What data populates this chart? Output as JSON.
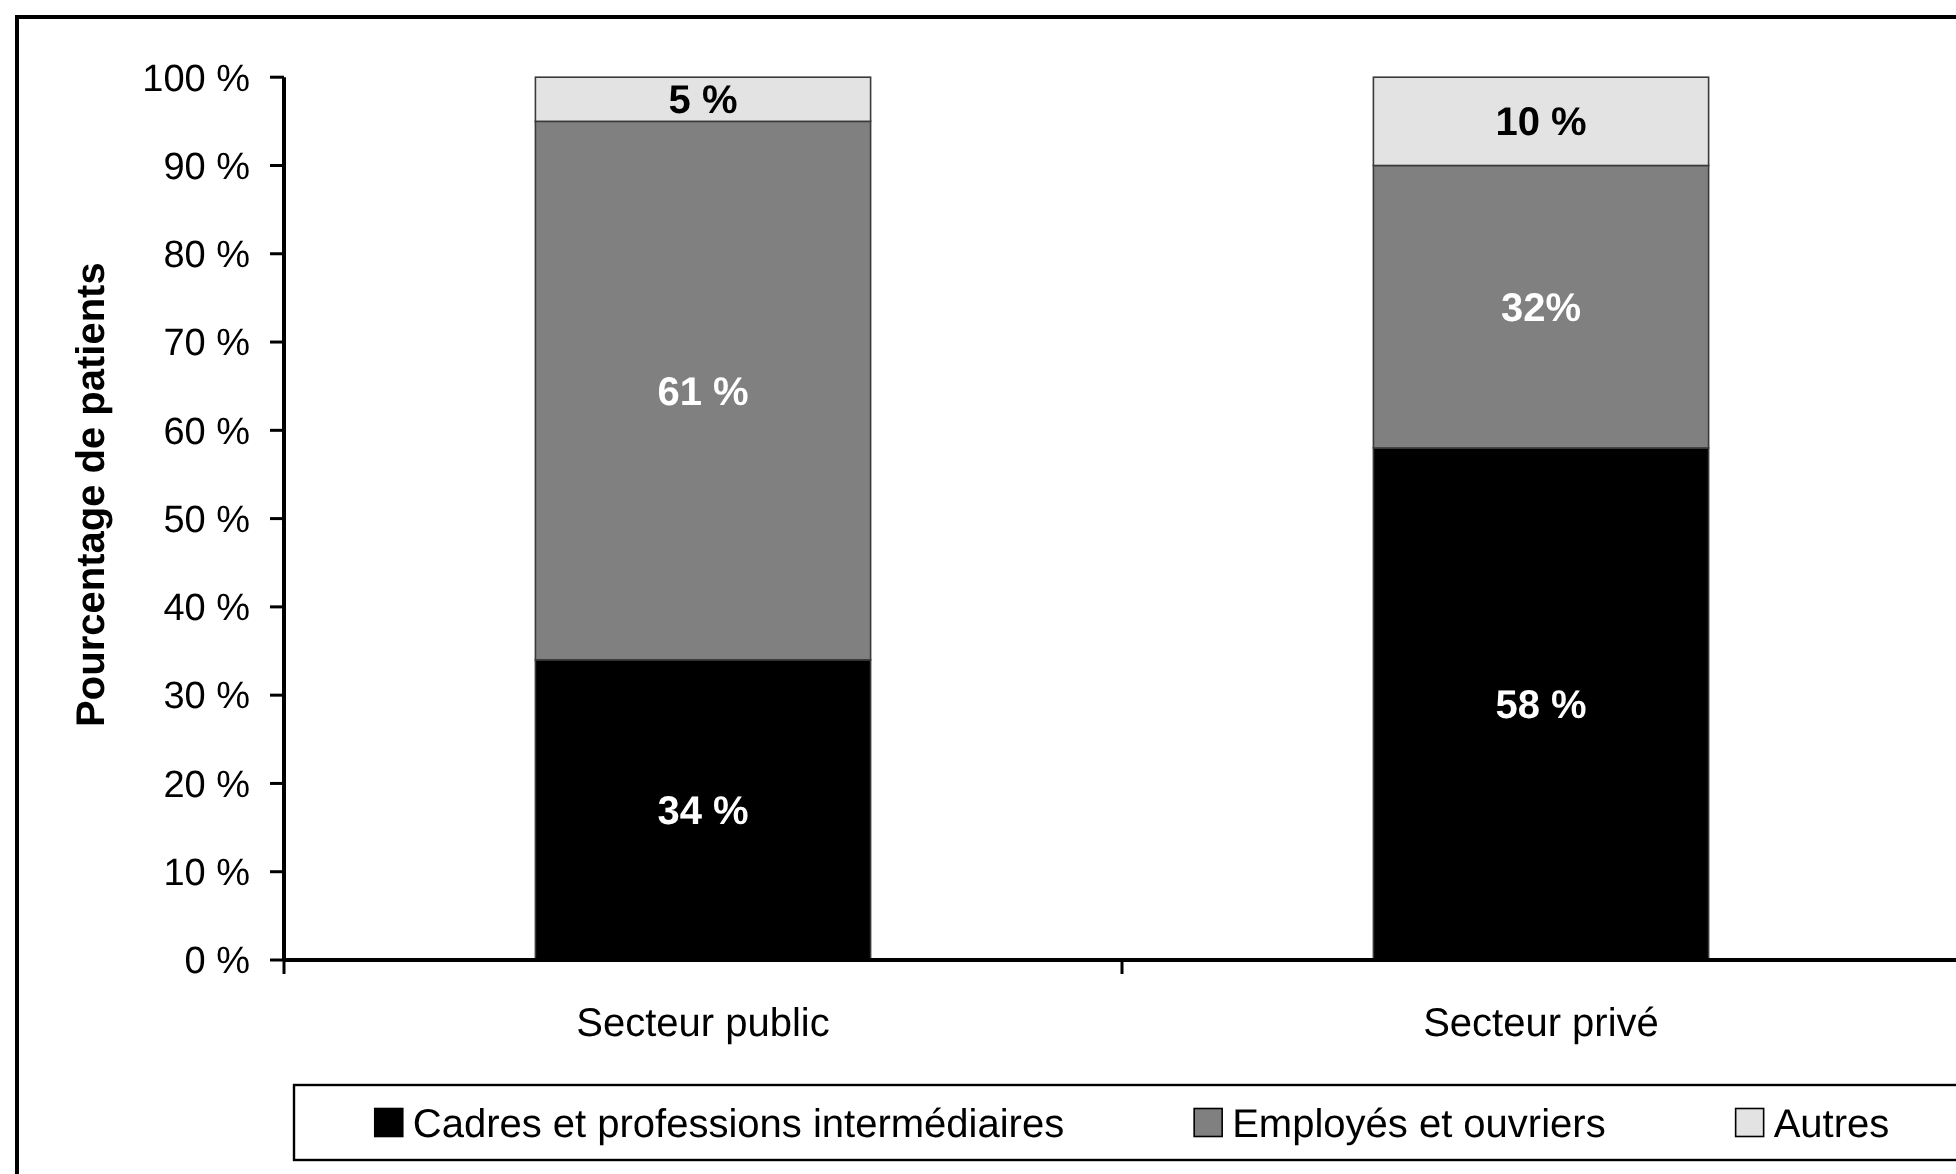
{
  "chart_data": {
    "type": "bar",
    "stacked": true,
    "ylabel": "Pourcentage de patients",
    "categories": [
      "Secteur public",
      "Secteur privé"
    ],
    "series": [
      {
        "name": "Cadres et professions intermédiaires",
        "color": "#000000",
        "values": [
          34,
          58
        ],
        "value_labels": [
          "34 %",
          "58 %"
        ]
      },
      {
        "name": "Employés et ouvriers",
        "color": "#808080",
        "values": [
          61,
          32
        ],
        "value_labels": [
          "61 %",
          "32%"
        ]
      },
      {
        "name": "Autres",
        "color": "#e3e3e3",
        "values": [
          5,
          10
        ],
        "value_labels": [
          "5 %",
          "10 %"
        ]
      }
    ],
    "ylim": [
      0,
      100
    ],
    "yticks": [
      {
        "value": 0,
        "label": "0 %"
      },
      {
        "value": 10,
        "label": "10 %"
      },
      {
        "value": 20,
        "label": "20 %"
      },
      {
        "value": 30,
        "label": "30 %"
      },
      {
        "value": 40,
        "label": "40 %"
      },
      {
        "value": 50,
        "label": "50 %"
      },
      {
        "value": 60,
        "label": "60 %"
      },
      {
        "value": 70,
        "label": "70 %"
      },
      {
        "value": 80,
        "label": "80 %"
      },
      {
        "value": 90,
        "label": "90 %"
      },
      {
        "value": 100,
        "label": "100 %"
      }
    ],
    "legend": "bottom",
    "grid": false
  }
}
